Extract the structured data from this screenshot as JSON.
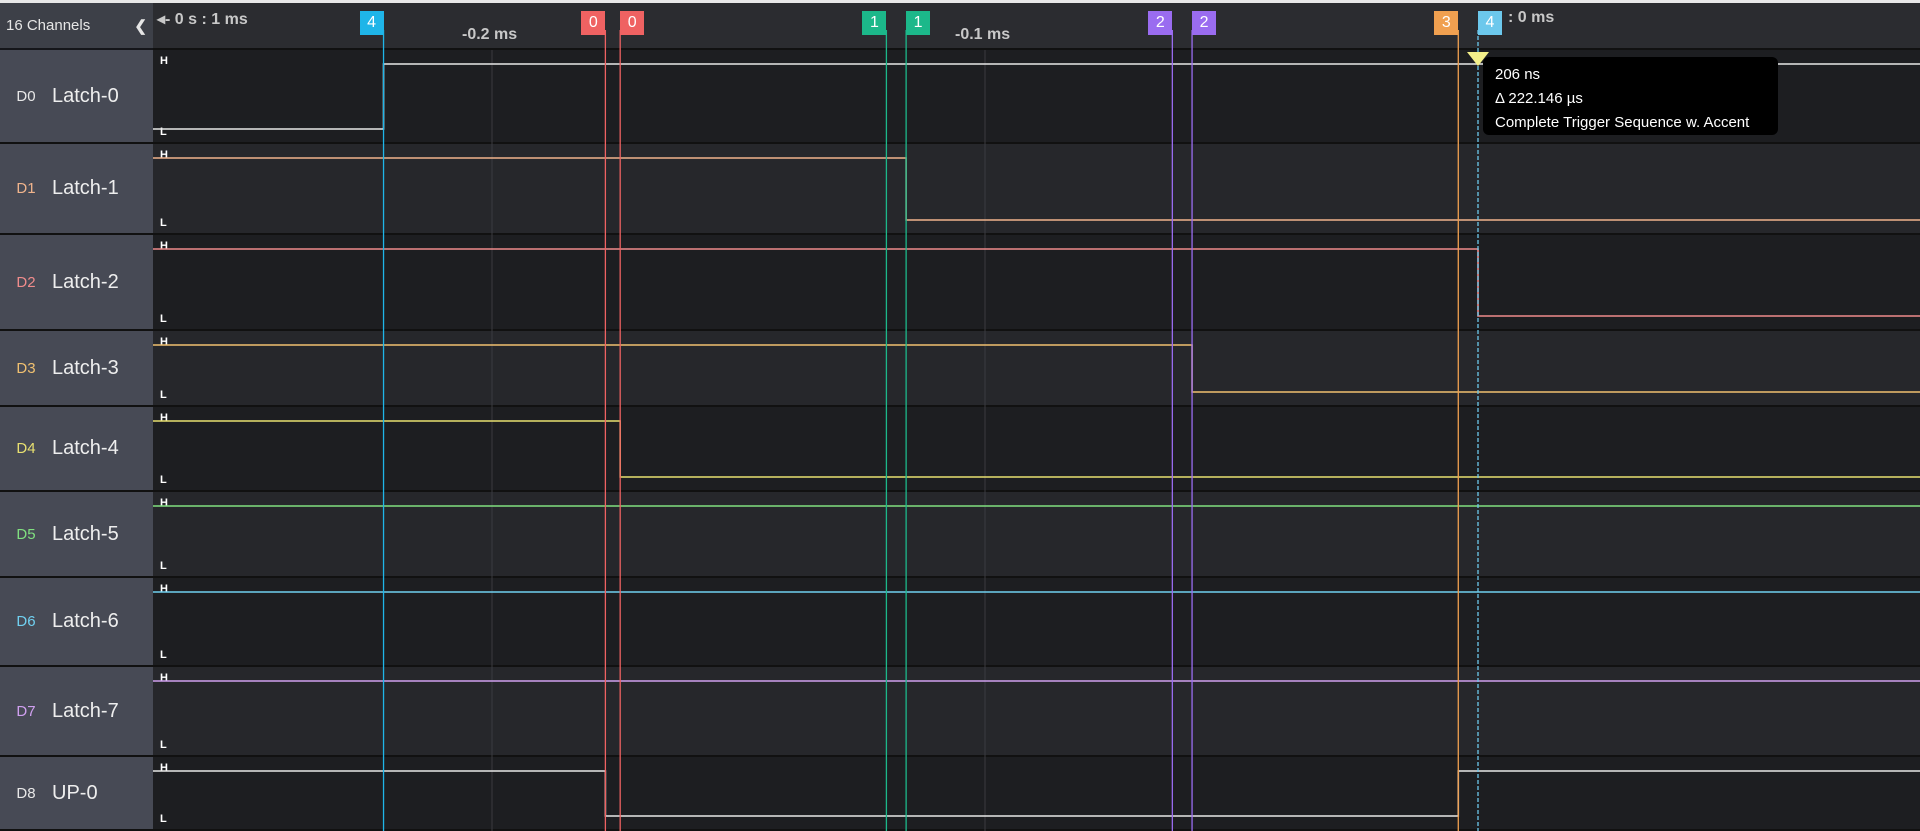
{
  "sidebar": {
    "title": "16 Channels",
    "collapse_icon": "chevron-left-icon"
  },
  "header": {
    "range_label": "◂- 0 s : 1 ms",
    "ticks": [
      {
        "label": "-0.2 ms",
        "t_us": -200
      },
      {
        "label": "-0.1 ms",
        "t_us": -100
      },
      {
        "label": ": 0 ms",
        "t_us": 0
      }
    ]
  },
  "markers": [
    {
      "label": "4",
      "t_us": -222,
      "color": "#1fb5e8"
    },
    {
      "label": "0",
      "t_us": -177,
      "color": "#ef6262"
    },
    {
      "label": "0",
      "t_us": -174,
      "color": "#ef6262"
    },
    {
      "label": "1",
      "t_us": -120,
      "color": "#1cb88a"
    },
    {
      "label": "1",
      "t_us": -116,
      "color": "#1cb88a"
    },
    {
      "label": "2",
      "t_us": -62,
      "color": "#9a6cf0"
    },
    {
      "label": "2",
      "t_us": -58,
      "color": "#9a6cf0"
    },
    {
      "label": "3",
      "t_us": -4,
      "color": "#f0a050"
    },
    {
      "label": "4",
      "t_us": 0,
      "color": "#6cc8ec"
    }
  ],
  "channels": [
    {
      "id": "D0",
      "name": "Latch-0",
      "color": "#e8e8e8",
      "initial": "L",
      "transitions_us": [
        -222
      ]
    },
    {
      "id": "D1",
      "name": "Latch-1",
      "color": "#f0b48c",
      "initial": "H",
      "transitions_us": [
        -116
      ]
    },
    {
      "id": "D2",
      "name": "Latch-2",
      "color": "#f08c8c",
      "initial": "H",
      "transitions_us": [
        0
      ]
    },
    {
      "id": "D3",
      "name": "Latch-3",
      "color": "#f0c070",
      "initial": "H",
      "transitions_us": [
        -58
      ]
    },
    {
      "id": "D4",
      "name": "Latch-4",
      "color": "#e8e070",
      "initial": "H",
      "transitions_us": [
        -174
      ]
    },
    {
      "id": "D5",
      "name": "Latch-5",
      "color": "#80e080",
      "initial": "H",
      "transitions_us": []
    },
    {
      "id": "D6",
      "name": "Latch-6",
      "color": "#70d0f0",
      "initial": "H",
      "transitions_us": []
    },
    {
      "id": "D7",
      "name": "Latch-7",
      "color": "#d0a0f0",
      "initial": "H",
      "transitions_us": []
    },
    {
      "id": "D8",
      "name": "UP-0",
      "color": "#e8e8e8",
      "initial": "H",
      "transitions_us": [
        -177,
        -4
      ]
    }
  ],
  "level_labels": {
    "high": "H",
    "low": "L"
  },
  "tooltip": {
    "time": "206 ns",
    "delta": "Δ 222.146 µs",
    "description": "Complete Trigger Sequence w. Accent"
  }
}
